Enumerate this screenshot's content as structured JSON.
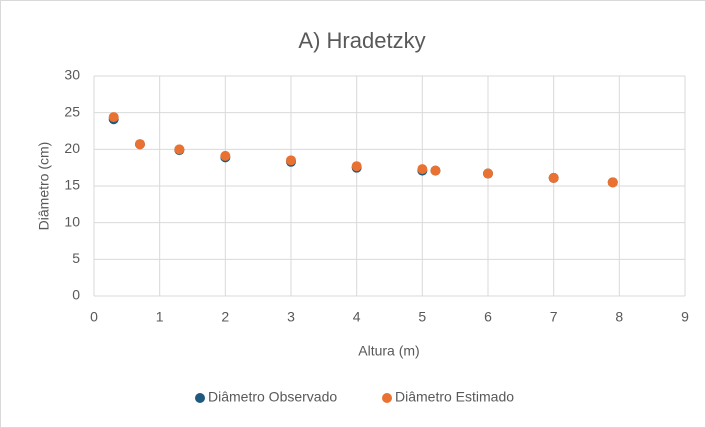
{
  "chart_data": {
    "type": "scatter",
    "title": "A) Hradetzky",
    "x_label": "Altura (m)",
    "y_label": "Diâmetro (cm)",
    "xlim": [
      0,
      9
    ],
    "xticks": [
      0,
      1,
      2,
      3,
      4,
      5,
      6,
      7,
      8,
      9
    ],
    "ylim": [
      0,
      30
    ],
    "yticks": [
      0,
      5,
      10,
      15,
      20,
      25,
      30
    ],
    "grid": true,
    "legend": "bottom",
    "series": [
      {
        "name": "Diâmetro Observado",
        "color": "#1f5a7e",
        "x": [
          0.3,
          0.7,
          1.3,
          2,
          3,
          4,
          5,
          5.2,
          6,
          7,
          7.9
        ],
        "values": [
          24.1,
          20.7,
          19.9,
          18.9,
          18.3,
          17.5,
          17.1,
          17.1,
          16.7,
          16.1,
          15.5
        ]
      },
      {
        "name": "Diâmetro Estimado",
        "color": "#e97132",
        "x": [
          0.3,
          0.7,
          1.3,
          2,
          3,
          4,
          5,
          5.2,
          6,
          7,
          7.9
        ],
        "values": [
          24.4,
          20.7,
          20.0,
          19.1,
          18.5,
          17.7,
          17.3,
          17.1,
          16.7,
          16.1,
          15.5
        ]
      }
    ]
  }
}
